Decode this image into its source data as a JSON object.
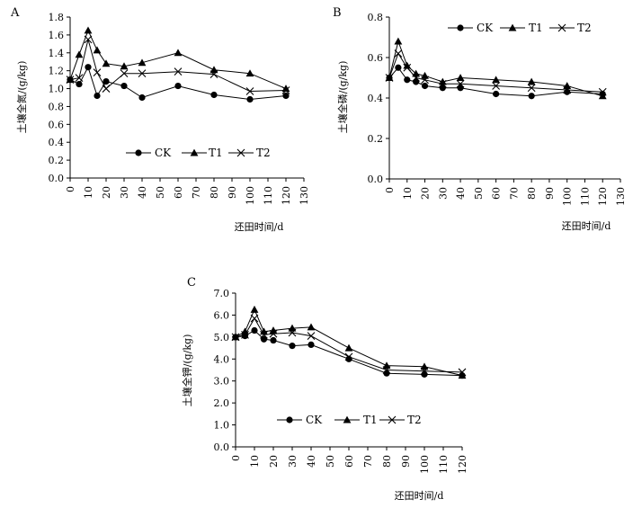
{
  "chart_data": [
    {
      "panel": "A",
      "type": "line",
      "xlabel": "还田时间/d",
      "ylabel": "土壤全氮/(g/kg)",
      "xlim": [
        0,
        130
      ],
      "ylim": [
        0,
        1.8
      ],
      "xticks": [
        0,
        10,
        20,
        30,
        40,
        50,
        60,
        70,
        80,
        90,
        100,
        110,
        120,
        130
      ],
      "yticks": [
        "0.0",
        "0.2",
        "0.4",
        "0.6",
        "0.8",
        "1.0",
        "1.2",
        "1.4",
        "1.6",
        "1.8"
      ],
      "legend_position": "bottom",
      "series": [
        {
          "name": "CK",
          "marker": "circle",
          "x": [
            0,
            5,
            10,
            15,
            20,
            30,
            40,
            60,
            80,
            100,
            120
          ],
          "y": [
            1.1,
            1.05,
            1.24,
            0.92,
            1.08,
            1.03,
            0.9,
            1.03,
            0.93,
            0.88,
            0.92
          ]
        },
        {
          "name": "T1",
          "marker": "triangle",
          "x": [
            0,
            5,
            10,
            15,
            20,
            30,
            40,
            60,
            80,
            100,
            120
          ],
          "y": [
            1.1,
            1.38,
            1.65,
            1.43,
            1.28,
            1.25,
            1.29,
            1.4,
            1.21,
            1.17,
            1.0
          ]
        },
        {
          "name": "T2",
          "marker": "cross",
          "x": [
            0,
            5,
            10,
            15,
            20,
            30,
            40,
            60,
            80,
            100,
            120
          ],
          "y": [
            1.1,
            1.12,
            1.55,
            1.18,
            1.0,
            1.17,
            1.17,
            1.19,
            1.16,
            0.97,
            0.98
          ]
        }
      ]
    },
    {
      "panel": "B",
      "type": "line",
      "xlabel": "还田时间/d",
      "ylabel": "土壤全磷/(g/kg)",
      "xlim": [
        0,
        130
      ],
      "ylim": [
        0,
        0.8
      ],
      "xticks": [
        0,
        10,
        20,
        30,
        40,
        50,
        60,
        70,
        80,
        90,
        100,
        110,
        120,
        130
      ],
      "yticks": [
        "0.0",
        "0.2",
        "0.4",
        "0.6",
        "0.8"
      ],
      "legend_position": "top",
      "series": [
        {
          "name": "CK",
          "marker": "circle",
          "x": [
            0,
            5,
            10,
            15,
            20,
            30,
            40,
            60,
            80,
            100,
            120
          ],
          "y": [
            0.5,
            0.55,
            0.49,
            0.48,
            0.46,
            0.45,
            0.45,
            0.42,
            0.41,
            0.43,
            0.42
          ]
        },
        {
          "name": "T1",
          "marker": "triangle",
          "x": [
            0,
            5,
            10,
            15,
            20,
            30,
            40,
            60,
            80,
            100,
            120
          ],
          "y": [
            0.5,
            0.68,
            0.56,
            0.52,
            0.51,
            0.48,
            0.5,
            0.49,
            0.48,
            0.46,
            0.41
          ]
        },
        {
          "name": "T2",
          "marker": "cross",
          "x": [
            0,
            5,
            10,
            15,
            20,
            30,
            40,
            60,
            80,
            100,
            120
          ],
          "y": [
            0.5,
            0.62,
            0.55,
            0.5,
            0.49,
            0.47,
            0.47,
            0.46,
            0.45,
            0.44,
            0.43
          ]
        }
      ]
    },
    {
      "panel": "C",
      "type": "line",
      "xlabel": "还田时间/d",
      "ylabel": "土壤全钾/(g/kg)",
      "xlim": [
        0,
        120
      ],
      "ylim": [
        0,
        7.0
      ],
      "xticks": [
        0,
        10,
        20,
        30,
        40,
        50,
        60,
        70,
        80,
        90,
        100,
        110,
        120
      ],
      "yticks": [
        "0.0",
        "1.0",
        "2.0",
        "3.0",
        "4.0",
        "5.0",
        "6.0",
        "7.0"
      ],
      "legend_position": "bottom",
      "series": [
        {
          "name": "CK",
          "marker": "circle",
          "x": [
            0,
            5,
            10,
            15,
            20,
            30,
            40,
            60,
            80,
            100,
            120
          ],
          "y": [
            5.0,
            5.05,
            5.3,
            4.9,
            4.85,
            4.6,
            4.65,
            4.0,
            3.35,
            3.3,
            3.25
          ]
        },
        {
          "name": "T1",
          "marker": "triangle",
          "x": [
            0,
            5,
            10,
            15,
            20,
            30,
            40,
            60,
            80,
            100,
            120
          ],
          "y": [
            5.0,
            5.25,
            6.25,
            5.25,
            5.3,
            5.4,
            5.45,
            4.5,
            3.7,
            3.65,
            3.25
          ]
        },
        {
          "name": "T2",
          "marker": "cross",
          "x": [
            0,
            5,
            10,
            15,
            20,
            30,
            40,
            60,
            80,
            100,
            120
          ],
          "y": [
            5.0,
            5.1,
            5.85,
            5.1,
            5.15,
            5.2,
            5.05,
            4.1,
            3.5,
            3.45,
            3.4
          ]
        }
      ]
    }
  ]
}
